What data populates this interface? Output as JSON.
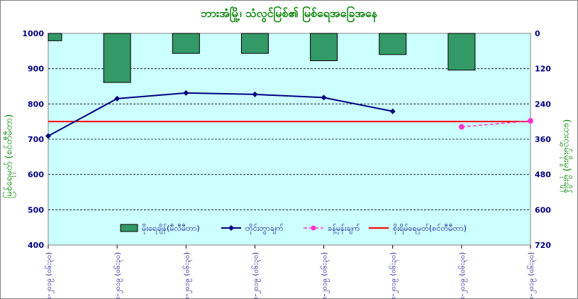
{
  "chart_data": {
    "type": "bar+line",
    "title": "ဘားအံမြို့၊ သံလွင်မြစ်၏ မြစ်ရေအခြေအနေ",
    "categories": [
      "၅-၈-၂၀၁၉ (၀၆:၃၀)",
      "၆-၈-၂၀၁၉ (၀၆:၃၀)",
      "၇-၈-၂၀၁၉ (၀၆:၃၀)",
      "၈-၈-၂၀၁၉ (၀၆:၃၀)",
      "၉-၈-၂၀၁၉ (၀၆:၃၀)",
      "၁၀-၈-၂၀၁၉ (၀၆:၃၀)",
      "၁၁-၈-၂၀၁၉ (၀၆:၃၀)",
      "၁၂-၈-၂၀၁၉ (၀၆:၃၀)"
    ],
    "y_left": {
      "label": "မြစ်ရေမှတ် (စင်တီမီတာ)",
      "min": 400,
      "max": 1000,
      "ticks": [
        400,
        500,
        600,
        700,
        800,
        900,
        1000
      ]
    },
    "y_right": {
      "label": "(ဘေးလွှမ်းမိုးမှု) မိုးချိန်",
      "min": 0,
      "max": 720,
      "reversed": true,
      "ticks": [
        0,
        120,
        240,
        360,
        480,
        600,
        720
      ]
    },
    "series": [
      {
        "name": "မိုးရေချိန်(မီလီမီတာ)",
        "kind": "bar",
        "axis": "right",
        "color": "#339966",
        "values": [
          25,
          167,
          68,
          68,
          93,
          72,
          125,
          null
        ]
      },
      {
        "name": "တိုင်းတွာချက်",
        "kind": "line",
        "axis": "left",
        "color": "#000080",
        "values": [
          709,
          815,
          831,
          827,
          818,
          779,
          null,
          null
        ]
      },
      {
        "name": "ခန့်မှန်းချက်",
        "kind": "dashed-line",
        "axis": "left",
        "color": "#ff33cc",
        "values": [
          null,
          null,
          null,
          null,
          null,
          null,
          735,
          752
        ]
      },
      {
        "name": "စိုးရိမ်ရေမှတ်(စင်တီမီတာ)",
        "kind": "hline",
        "axis": "left",
        "color": "#ff0000",
        "value": 750
      }
    ],
    "grid": true,
    "legend": "bottom-center",
    "plot_background": "#ccffff"
  }
}
